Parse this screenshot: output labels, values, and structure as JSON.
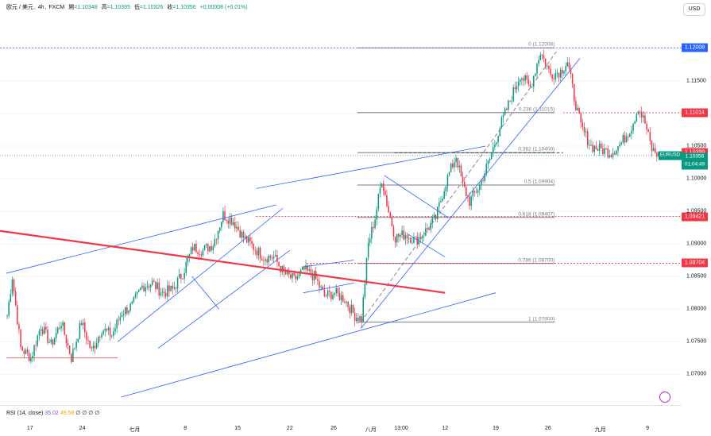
{
  "header": {
    "symbol": "欧元 / 美元",
    "interval": "4h",
    "exchange": "FXCM",
    "open_label": "開",
    "open": "=1.10348",
    "high_label": "高",
    "high": "=1.10395",
    "low_label": "低",
    "low": "=1.10326",
    "close_label": "收",
    "close": "=1.10356",
    "change": "+0.00008 (+0.01%)"
  },
  "currency_button": "USD",
  "rsi": {
    "label": "RSI (14, close)",
    "value": "35.02",
    "ma_value": "49.58",
    "placeholders": "∅ ∅ ∅ ∅"
  },
  "colors": {
    "up": "#089981",
    "down": "#f23645",
    "trendline_blue": "#2962ff",
    "trendline_red": "#f23645",
    "fib_gray": "#787b86",
    "rsi": "#7e57c2",
    "rsi_ma": "#f7a600"
  },
  "price_axis": {
    "ticks": [
      "1.11500",
      "1.10500",
      "1.10000",
      "1.09500",
      "1.09000",
      "1.08500",
      "1.08000",
      "1.07500",
      "1.07000"
    ],
    "badges": [
      {
        "price": "1.12008",
        "color": "#2962ff"
      },
      {
        "price": "1.11014",
        "color": "#f23645"
      },
      {
        "price": "1.09421",
        "color": "#f23645"
      },
      {
        "price": "1.08704",
        "color": "#f23645"
      },
      {
        "price": "1.10399",
        "color": "#f23645"
      }
    ],
    "current": {
      "symbol": "EURUSD",
      "price": "1.10356",
      "countdown": "01:04:49"
    }
  },
  "time_axis": {
    "ticks": [
      "17",
      "24",
      "七月",
      "8",
      "15",
      "22",
      "26",
      "八月",
      "13:00",
      "12",
      "19",
      "26",
      "九月",
      "9"
    ]
  },
  "chart_data": {
    "type": "candlestick",
    "symbol": "EURUSD",
    "ylim": [
      1.0665,
      1.1245
    ],
    "fib_levels": [
      {
        "label": "0 (1.12008)",
        "price": 1.12008
      },
      {
        "label": "0.236 (1.11015)",
        "price": 1.11015
      },
      {
        "label": "0.382 (1.10400)",
        "price": 1.104
      },
      {
        "label": "0.5 (1.09904)",
        "price": 1.09904
      },
      {
        "label": "0.618 (1.09407)",
        "price": 1.09407
      },
      {
        "label": "0.786 (1.08700)",
        "price": 1.087
      },
      {
        "label": "1 (1.07800)",
        "price": 1.078
      }
    ],
    "dashed_levels": [
      1.12008,
      1.11014,
      1.09421,
      1.08704
    ],
    "last_price": 1.10356,
    "waypoints": [
      [
        0,
        1.079
      ],
      [
        3,
        1.085
      ],
      [
        8,
        1.074
      ],
      [
        14,
        1.0725
      ],
      [
        20,
        1.0775
      ],
      [
        26,
        1.0745
      ],
      [
        32,
        1.078
      ],
      [
        38,
        1.0725
      ],
      [
        44,
        1.078
      ],
      [
        50,
        1.0735
      ],
      [
        56,
        1.077
      ],
      [
        62,
        1.076
      ],
      [
        68,
        1.0795
      ],
      [
        74,
        1.0805
      ],
      [
        80,
        1.0835
      ],
      [
        86,
        1.084
      ],
      [
        92,
        1.0825
      ],
      [
        98,
        1.083
      ],
      [
        104,
        1.0855
      ],
      [
        110,
        1.0895
      ],
      [
        116,
        1.089
      ],
      [
        122,
        1.09
      ],
      [
        128,
        1.0945
      ],
      [
        134,
        1.0935
      ],
      [
        140,
        1.091
      ],
      [
        146,
        1.0895
      ],
      [
        152,
        1.088
      ],
      [
        158,
        1.088
      ],
      [
        164,
        1.0855
      ],
      [
        170,
        1.0845
      ],
      [
        176,
        1.086
      ],
      [
        182,
        1.085
      ],
      [
        188,
        1.082
      ],
      [
        194,
        1.0825
      ],
      [
        200,
        1.0815
      ],
      [
        206,
        1.079
      ],
      [
        210,
        1.0785
      ],
      [
        214,
        1.09
      ],
      [
        218,
        1.094
      ],
      [
        222,
        1.1
      ],
      [
        226,
        1.095
      ],
      [
        230,
        1.091
      ],
      [
        236,
        1.0915
      ],
      [
        242,
        1.0905
      ],
      [
        248,
        1.092
      ],
      [
        254,
        1.094
      ],
      [
        260,
        1.0995
      ],
      [
        266,
        1.1035
      ],
      [
        270,
        1.099
      ],
      [
        274,
        1.0965
      ],
      [
        280,
        1.099
      ],
      [
        286,
        1.103
      ],
      [
        292,
        1.108
      ],
      [
        298,
        1.112
      ],
      [
        304,
        1.116
      ],
      [
        310,
        1.114
      ],
      [
        316,
        1.1195
      ],
      [
        322,
        1.116
      ],
      [
        328,
        1.1165
      ],
      [
        332,
        1.118
      ],
      [
        336,
        1.1125
      ],
      [
        340,
        1.108
      ],
      [
        346,
        1.105
      ],
      [
        352,
        1.1045
      ],
      [
        358,
        1.104
      ],
      [
        364,
        1.1055
      ],
      [
        370,
        1.108
      ],
      [
        374,
        1.111
      ],
      [
        378,
        1.1085
      ],
      [
        382,
        1.1045
      ],
      [
        386,
        1.1036
      ]
    ]
  }
}
